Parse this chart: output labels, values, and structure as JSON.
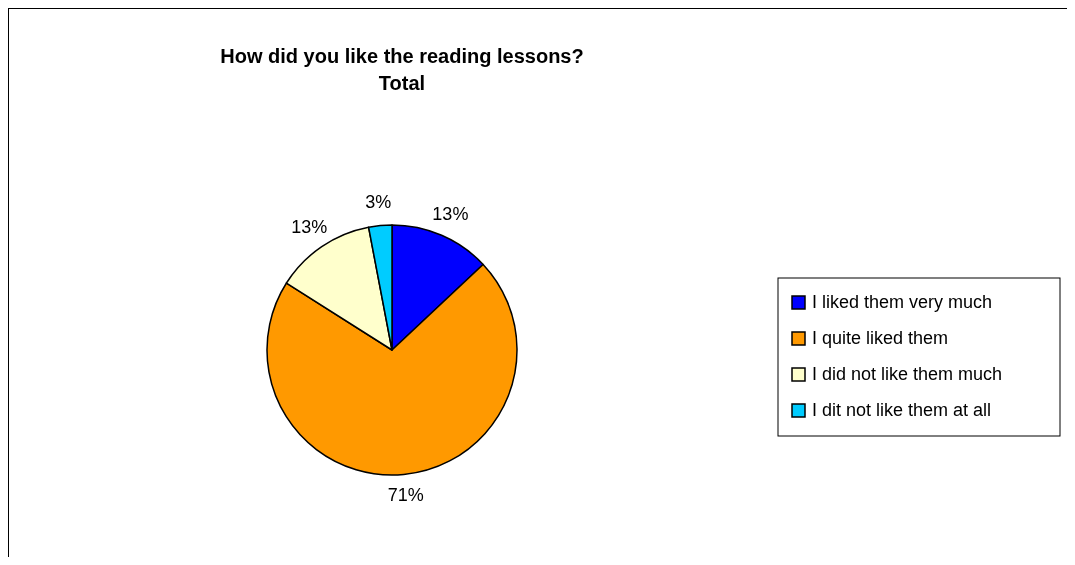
{
  "chart_data": {
    "type": "pie",
    "title": "How did you like the reading lessons?",
    "subtitle": "Total",
    "categories": [
      "I liked them very much",
      "I quite liked them",
      "I did not like them much",
      "I dit not like them at all"
    ],
    "values": [
      13,
      71,
      13,
      3
    ],
    "colors": [
      "#0000ff",
      "#ff9900",
      "#ffffcc",
      "#00ccff"
    ],
    "value_labels": [
      "13%",
      "71%",
      "13%",
      "3%"
    ],
    "legend": "right"
  }
}
